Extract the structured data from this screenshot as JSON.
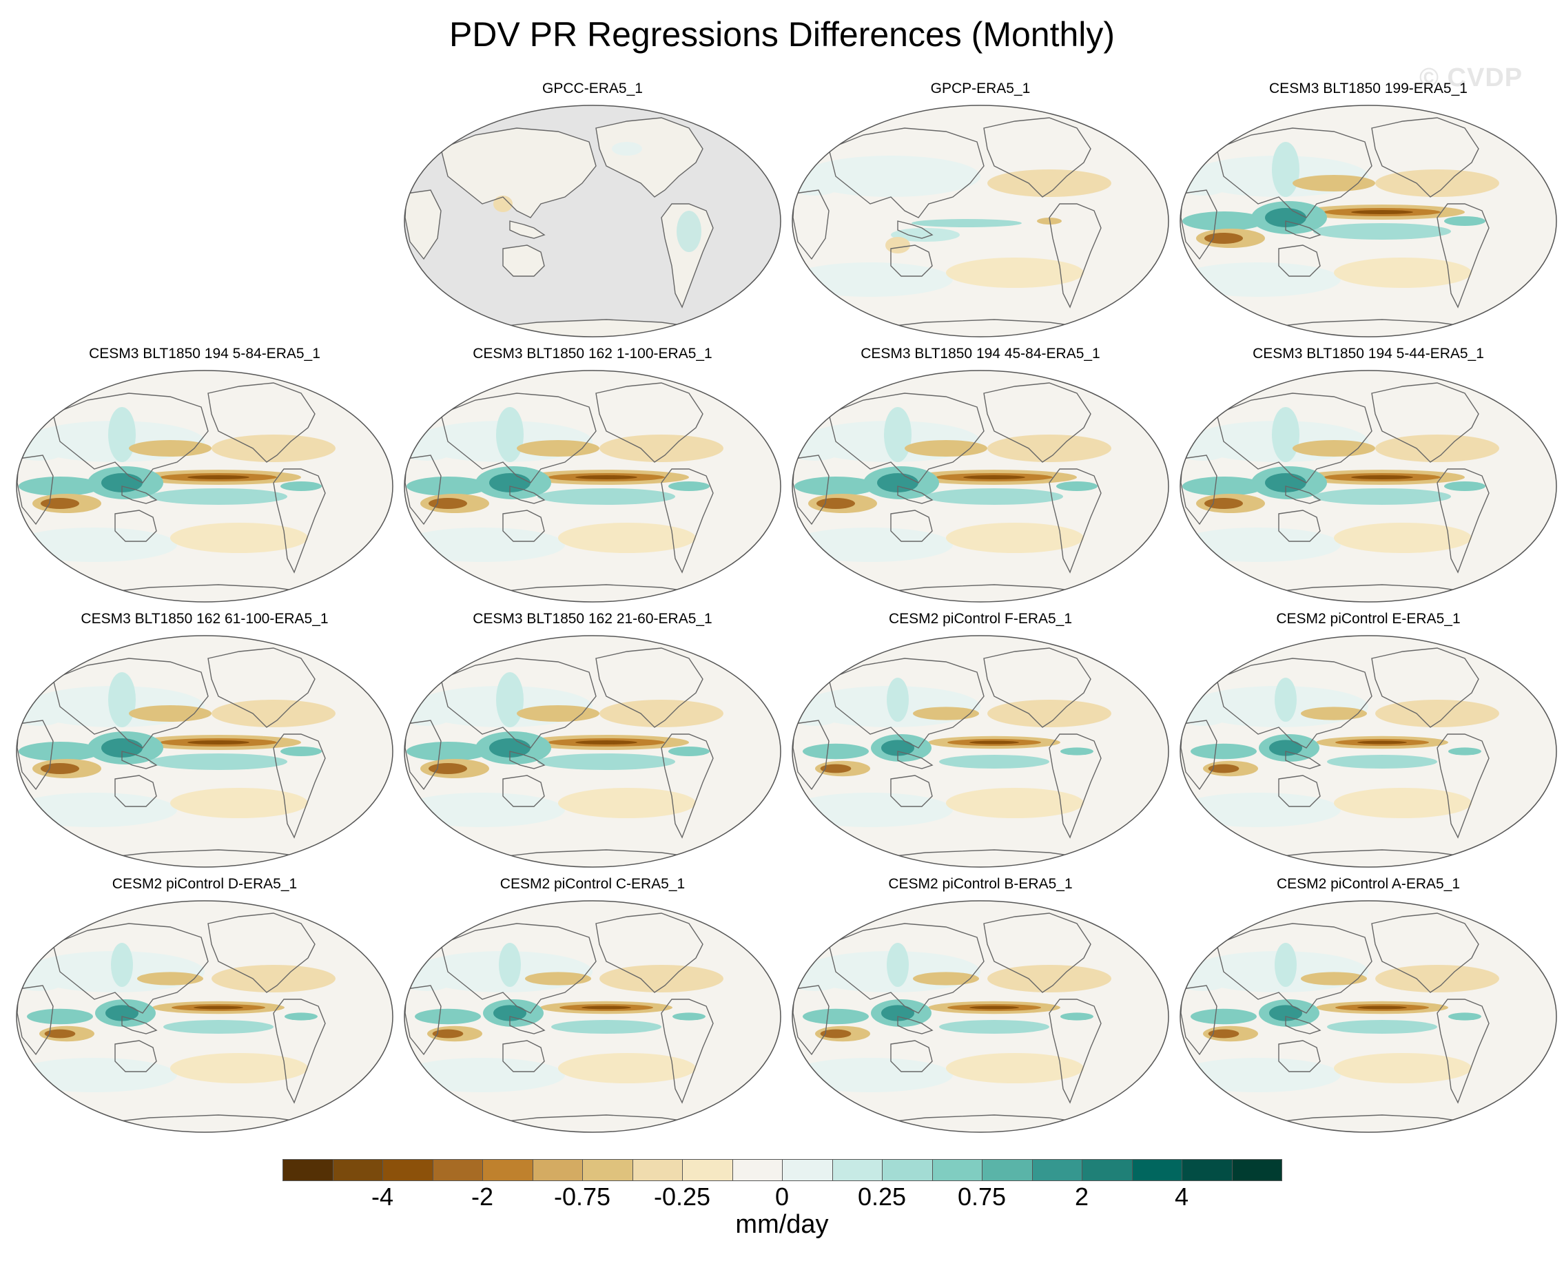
{
  "title": "PDV PR Regressions Differences (Monthly)",
  "watermark": "© CVDP",
  "panels": [
    {
      "title": "",
      "empty": true
    },
    {
      "title": "GPCC-ERA5_1",
      "style": "land"
    },
    {
      "title": "GPCP-ERA5_1",
      "style": "weak"
    },
    {
      "title": "CESM3 BLT1850 199-ERA5_1",
      "style": "strong"
    },
    {
      "title": "CESM3 BLT1850 194 5-84-ERA5_1",
      "style": "strong"
    },
    {
      "title": "CESM3 BLT1850 162 1-100-ERA5_1",
      "style": "strong"
    },
    {
      "title": "CESM3 BLT1850 194 45-84-ERA5_1",
      "style": "strong"
    },
    {
      "title": "CESM3 BLT1850 194 5-44-ERA5_1",
      "style": "strong"
    },
    {
      "title": "CESM3 BLT1850 162 61-100-ERA5_1",
      "style": "strong"
    },
    {
      "title": "CESM3 BLT1850 162 21-60-ERA5_1",
      "style": "strong"
    },
    {
      "title": "CESM2 piControl F-ERA5_1",
      "style": "medium"
    },
    {
      "title": "CESM2 piControl E-ERA5_1",
      "style": "medium"
    },
    {
      "title": "CESM2 piControl D-ERA5_1",
      "style": "medium"
    },
    {
      "title": "CESM2 piControl C-ERA5_1",
      "style": "medium"
    },
    {
      "title": "CESM2 piControl B-ERA5_1",
      "style": "medium"
    },
    {
      "title": "CESM2 piControl A-ERA5_1",
      "style": "medium"
    }
  ],
  "colorbar": {
    "colors": [
      "#543005",
      "#7a4a0c",
      "#8c510a",
      "#a76b24",
      "#bf812d",
      "#d4ab62",
      "#dfc27d",
      "#f0dcae",
      "#f6e8c3",
      "#f5f3ee",
      "#e8f3f1",
      "#c7eae5",
      "#a3dcd4",
      "#80cdc1",
      "#5ab4a8",
      "#35978f",
      "#1f8077",
      "#01665e",
      "#024d44",
      "#003c30"
    ],
    "labels": [
      {
        "text": "-4",
        "index": 2
      },
      {
        "text": "-2",
        "index": 4
      },
      {
        "text": "-0.75",
        "index": 6
      },
      {
        "text": "-0.25",
        "index": 8
      },
      {
        "text": "0",
        "index": 10
      },
      {
        "text": "0.25",
        "index": 12
      },
      {
        "text": "0.75",
        "index": 14
      },
      {
        "text": "2",
        "index": 16
      },
      {
        "text": "4",
        "index": 18
      }
    ],
    "units": "mm/day"
  }
}
